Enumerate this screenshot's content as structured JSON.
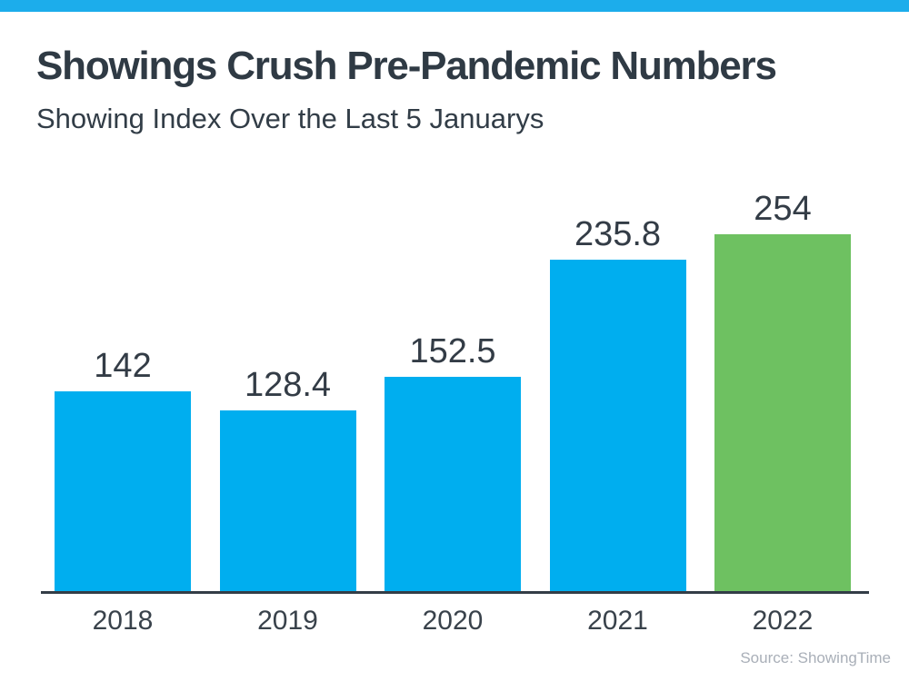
{
  "page": {
    "background": "#ffffff",
    "top_strip_color": "#1CADEB"
  },
  "header": {
    "title": "Showings Crush Pre-Pandemic Numbers",
    "subtitle": "Showing Index Over the Last 5 Januarys"
  },
  "chart_data": {
    "type": "bar",
    "title": "Showings Crush Pre-Pandemic Numbers",
    "subtitle": "Showing Index Over the Last 5 Januarys",
    "categories": [
      "2018",
      "2019",
      "2020",
      "2021",
      "2022"
    ],
    "values": [
      142,
      128.4,
      152.5,
      235.8,
      254
    ],
    "value_labels": [
      "142",
      "128.4",
      "152.5",
      "235.8",
      "254"
    ],
    "bar_colors": [
      "#00AEEF",
      "#00AEEF",
      "#00AEEF",
      "#00AEEF",
      "#6EC161"
    ],
    "primary_bar_color": "#00AEEF",
    "highlight_bar_color": "#6EC161",
    "xlabel": "",
    "ylabel": "",
    "ylim": [
      0,
      294
    ],
    "grid": false,
    "legend": false,
    "value_label_color": "#333C46",
    "tick_label_color": "#39424B",
    "axis_color": "#333D47"
  },
  "footer": {
    "source": "Source: ShowingTime"
  }
}
